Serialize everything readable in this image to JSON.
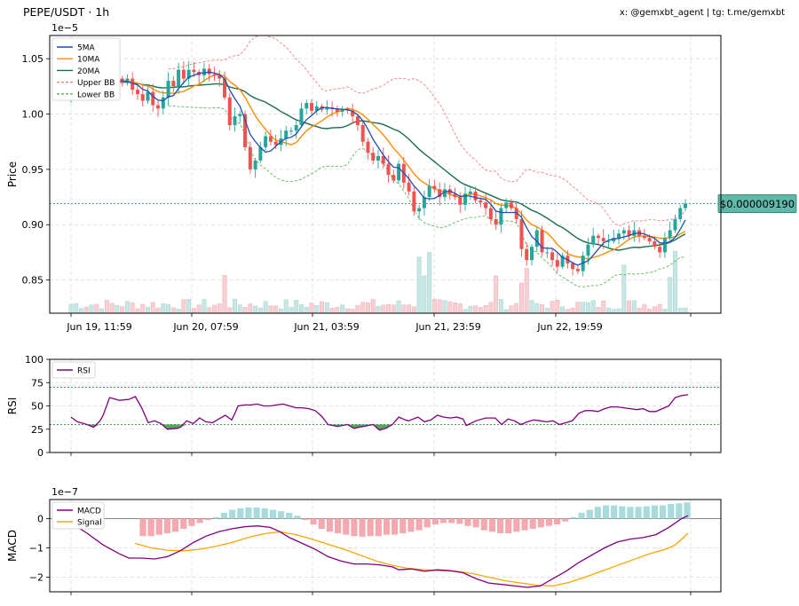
{
  "header": {
    "title": "PEPE/USDT · 1h",
    "credit": "x: @gemxbt_agent | tg: t.me/gemxbt"
  },
  "chart_data": [
    {
      "type": "candlestick",
      "ylabel": "Price",
      "exponent": "1e−5",
      "ylim": [
        0.82,
        1.071
      ],
      "yticks": [
        0.85,
        0.9,
        0.95,
        1.0,
        1.05
      ],
      "ytick_labels": [
        "0.85",
        "0.90",
        "0.95",
        "1.00",
        "1.05"
      ],
      "xtick_labels": [
        "Jun 19, 11:59",
        "Jun 20, 07:59",
        "Jun 21, 03:59",
        "Jun 21, 23:59",
        "Jun 22, 19:59"
      ],
      "price_label": "$0.000009190",
      "current_price": 0.919,
      "legend": [
        "5MA",
        "10MA",
        "20MA",
        "Upper BB",
        "Lower BB"
      ],
      "legend_position": "upper-left",
      "grid": true,
      "colors": {
        "up": "#26a69a",
        "down": "#ef5350",
        "ma5": "#1f4fb4",
        "ma10": "#ff8c00",
        "ma20": "#1b6e4a",
        "bb_upper": "#f08080",
        "bb_lower": "#5cb85c"
      },
      "closes": [
        1.02,
        1.03,
        1.033,
        1.025,
        1.03,
        1.028,
        1.035,
        1.03,
        1.025,
        1.032,
        1.028,
        1.032,
        1.022,
        1.018,
        1.012,
        1.02,
        1.008,
        1.005,
        1.015,
        1.03,
        1.025,
        1.04,
        1.032,
        1.04,
        1.038,
        1.035,
        1.041,
        1.036,
        1.035,
        1.032,
        1.015,
        0.99,
        0.998,
        1.0,
        0.97,
        0.95,
        0.958,
        0.97,
        0.98,
        0.975,
        0.972,
        0.978,
        0.985,
        0.985,
        0.99,
        1.005,
        1.01,
        1.003,
        1.007,
        1.004,
        1.006,
        1.005,
        1.002,
        1.004,
        1.003,
        0.998,
        0.99,
        0.975,
        0.965,
        0.958,
        0.962,
        0.955,
        0.945,
        0.94,
        0.955,
        0.938,
        0.93,
        0.912,
        0.915,
        0.925,
        0.935,
        0.932,
        0.925,
        0.932,
        0.928,
        0.925,
        0.918,
        0.928,
        0.93,
        0.922,
        0.92,
        0.915,
        0.905,
        0.9,
        0.915,
        0.92,
        0.915,
        0.905,
        0.878,
        0.868,
        0.88,
        0.895,
        0.875,
        0.875,
        0.868,
        0.862,
        0.872,
        0.865,
        0.86,
        0.858,
        0.872,
        0.882,
        0.89,
        0.888,
        0.885,
        0.885,
        0.888,
        0.892,
        0.895,
        0.89,
        0.895,
        0.89,
        0.888,
        0.885,
        0.88,
        0.875,
        0.888,
        0.895,
        0.905,
        0.915,
        0.919
      ]
    },
    {
      "type": "line",
      "ylabel": "RSI",
      "ylim": [
        0,
        100
      ],
      "yticks": [
        0,
        25,
        50,
        75,
        100
      ],
      "levels": {
        "overbought": 70,
        "oversold": 30
      },
      "legend": [
        "RSI"
      ],
      "legend_position": "upper-left",
      "colors": {
        "rsi": "#800080"
      },
      "points": [
        [
          0,
          38
        ],
        [
          2,
          33
        ],
        [
          4,
          31
        ],
        [
          5,
          30
        ],
        [
          7,
          27
        ],
        [
          9,
          34
        ],
        [
          10,
          40
        ],
        [
          12,
          59
        ],
        [
          14,
          57
        ],
        [
          15,
          56
        ],
        [
          18,
          57
        ],
        [
          20,
          60
        ],
        [
          22,
          48
        ],
        [
          24,
          32
        ],
        [
          26,
          34
        ],
        [
          28,
          31
        ],
        [
          30,
          25
        ],
        [
          33,
          26
        ],
        [
          34,
          27
        ],
        [
          36,
          34
        ],
        [
          38,
          31
        ],
        [
          40,
          37
        ],
        [
          42,
          33
        ],
        [
          44,
          32
        ],
        [
          46,
          36
        ],
        [
          48,
          40
        ],
        [
          50,
          35
        ],
        [
          51,
          42
        ],
        [
          52,
          50
        ],
        [
          54,
          51
        ],
        [
          56,
          51
        ],
        [
          58,
          52
        ],
        [
          60,
          50
        ],
        [
          62,
          50
        ],
        [
          64,
          51
        ],
        [
          66,
          52
        ],
        [
          68,
          50
        ],
        [
          70,
          48
        ],
        [
          72,
          48
        ],
        [
          74,
          47
        ],
        [
          76,
          45
        ],
        [
          78,
          39
        ],
        [
          80,
          30
        ],
        [
          83,
          28
        ],
        [
          86,
          30
        ],
        [
          88,
          26
        ],
        [
          91,
          28
        ],
        [
          94,
          30
        ],
        [
          96,
          24
        ],
        [
          98,
          26
        ],
        [
          100,
          30
        ],
        [
          102,
          38
        ],
        [
          104,
          35
        ],
        [
          105,
          34
        ],
        [
          108,
          38
        ],
        [
          110,
          33
        ],
        [
          112,
          35
        ],
        [
          114,
          40
        ],
        [
          116,
          38
        ],
        [
          118,
          37
        ],
        [
          120,
          38
        ],
        [
          122,
          36
        ],
        [
          123,
          29
        ],
        [
          126,
          34
        ],
        [
          129,
          37
        ],
        [
          132,
          37
        ],
        [
          134,
          30
        ],
        [
          136,
          36
        ],
        [
          138,
          34
        ],
        [
          140,
          30
        ],
        [
          142,
          33
        ],
        [
          144,
          35
        ],
        [
          146,
          34
        ],
        [
          148,
          33
        ],
        [
          150,
          34
        ],
        [
          152,
          30
        ],
        [
          154,
          32
        ],
        [
          156,
          34
        ],
        [
          158,
          42
        ],
        [
          160,
          45
        ],
        [
          162,
          45
        ],
        [
          164,
          44
        ],
        [
          166,
          47
        ],
        [
          168,
          49
        ],
        [
          170,
          49
        ],
        [
          172,
          48
        ],
        [
          174,
          47
        ],
        [
          176,
          46
        ],
        [
          178,
          47
        ],
        [
          180,
          44
        ],
        [
          182,
          44
        ],
        [
          184,
          47
        ],
        [
          186,
          50
        ],
        [
          188,
          59
        ],
        [
          190,
          61
        ],
        [
          192,
          62
        ]
      ]
    },
    {
      "type": "line+bar",
      "ylabel": "MACD",
      "exponent": "1e−7",
      "ylim": [
        -2.5,
        0.65
      ],
      "yticks": [
        -2,
        -1,
        0
      ],
      "ytick_labels": [
        "−2",
        "−1",
        "0"
      ],
      "legend": [
        "MACD",
        "Signal"
      ],
      "legend_position": "upper-left",
      "colors": {
        "macd": "#800080",
        "signal": "#ffa500",
        "hist_pos": "#a8dcdc",
        "hist_neg": "#f4a9b0"
      },
      "macd": [
        [
          0,
          -0.15
        ],
        [
          5,
          -0.5
        ],
        [
          10,
          -0.9
        ],
        [
          15,
          -1.2
        ],
        [
          18,
          -1.35
        ],
        [
          22,
          -1.35
        ],
        [
          26,
          -1.38
        ],
        [
          30,
          -1.3
        ],
        [
          34,
          -1.1
        ],
        [
          38,
          -0.82
        ],
        [
          42,
          -0.6
        ],
        [
          46,
          -0.45
        ],
        [
          50,
          -0.35
        ],
        [
          54,
          -0.28
        ],
        [
          58,
          -0.25
        ],
        [
          62,
          -0.3
        ],
        [
          65,
          -0.45
        ],
        [
          68,
          -0.65
        ],
        [
          72,
          -0.85
        ],
        [
          76,
          -1.05
        ],
        [
          80,
          -1.3
        ],
        [
          84,
          -1.45
        ],
        [
          88,
          -1.55
        ],
        [
          92,
          -1.55
        ],
        [
          96,
          -1.58
        ],
        [
          100,
          -1.65
        ],
        [
          102,
          -1.75
        ],
        [
          106,
          -1.72
        ],
        [
          110,
          -1.8
        ],
        [
          114,
          -1.75
        ],
        [
          118,
          -1.78
        ],
        [
          122,
          -1.85
        ],
        [
          126,
          -2.05
        ],
        [
          130,
          -2.2
        ],
        [
          134,
          -2.25
        ],
        [
          138,
          -2.3
        ],
        [
          142,
          -2.35
        ],
        [
          146,
          -2.3
        ],
        [
          150,
          -2.05
        ],
        [
          154,
          -1.8
        ],
        [
          158,
          -1.5
        ],
        [
          162,
          -1.25
        ],
        [
          166,
          -1.0
        ],
        [
          170,
          -0.8
        ],
        [
          174,
          -0.7
        ],
        [
          178,
          -0.65
        ],
        [
          182,
          -0.55
        ],
        [
          186,
          -0.3
        ],
        [
          190,
          0.0
        ],
        [
          192,
          0.1
        ]
      ],
      "signal": [
        [
          20,
          -0.85
        ],
        [
          25,
          -1.0
        ],
        [
          30,
          -1.08
        ],
        [
          35,
          -1.1
        ],
        [
          40,
          -1.05
        ],
        [
          45,
          -0.95
        ],
        [
          50,
          -0.82
        ],
        [
          55,
          -0.65
        ],
        [
          60,
          -0.52
        ],
        [
          65,
          -0.45
        ],
        [
          70,
          -0.55
        ],
        [
          75,
          -0.7
        ],
        [
          80,
          -0.88
        ],
        [
          85,
          -1.05
        ],
        [
          90,
          -1.25
        ],
        [
          95,
          -1.45
        ],
        [
          100,
          -1.6
        ],
        [
          105,
          -1.7
        ],
        [
          110,
          -1.75
        ],
        [
          115,
          -1.78
        ],
        [
          120,
          -1.8
        ],
        [
          125,
          -1.88
        ],
        [
          130,
          -2.0
        ],
        [
          135,
          -2.12
        ],
        [
          140,
          -2.2
        ],
        [
          145,
          -2.28
        ],
        [
          150,
          -2.3
        ],
        [
          155,
          -2.18
        ],
        [
          160,
          -2.0
        ],
        [
          165,
          -1.8
        ],
        [
          170,
          -1.6
        ],
        [
          175,
          -1.4
        ],
        [
          180,
          -1.2
        ],
        [
          185,
          -1.05
        ],
        [
          188,
          -0.9
        ],
        [
          190,
          -0.7
        ],
        [
          192,
          -0.5
        ]
      ],
      "histogram": [
        -0.6,
        -0.6,
        -0.55,
        -0.5,
        -0.45,
        -0.35,
        -0.25,
        -0.15,
        -0.05,
        0.05,
        0.2,
        0.3,
        0.35,
        0.38,
        0.38,
        0.35,
        0.3,
        0.25,
        0.2,
        0.1,
        -0.05,
        -0.2,
        -0.35,
        -0.45,
        -0.5,
        -0.55,
        -0.6,
        -0.62,
        -0.6,
        -0.6,
        -0.55,
        -0.55,
        -0.5,
        -0.45,
        -0.4,
        -0.3,
        -0.2,
        -0.15,
        -0.15,
        -0.18,
        -0.25,
        -0.3,
        -0.4,
        -0.45,
        -0.5,
        -0.5,
        -0.45,
        -0.4,
        -0.35,
        -0.3,
        -0.25,
        -0.2,
        -0.1,
        0.05,
        0.2,
        0.3,
        0.4,
        0.45,
        0.45,
        0.42,
        0.4,
        0.4,
        0.42,
        0.45,
        0.45,
        0.5,
        0.52,
        0.55
      ]
    }
  ]
}
